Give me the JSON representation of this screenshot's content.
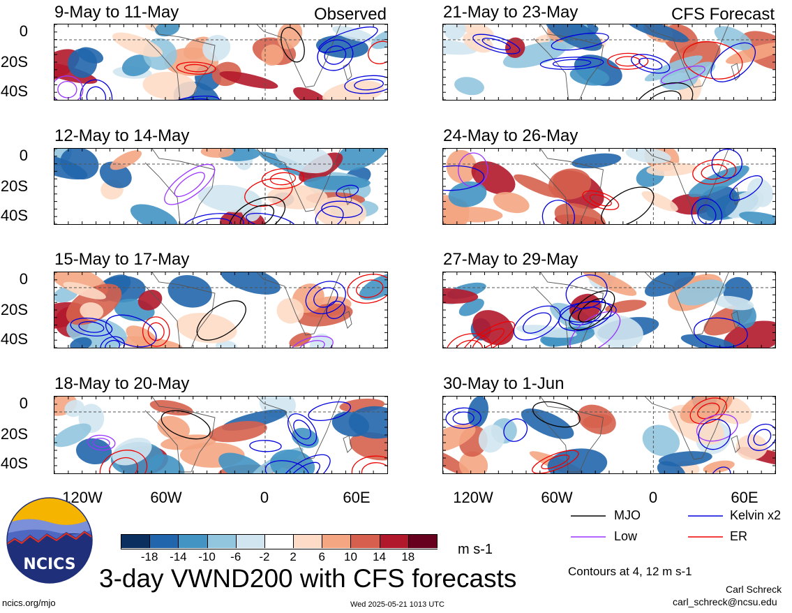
{
  "panels": [
    {
      "title": "9-May to 11-May",
      "tag": "Observed"
    },
    {
      "title": "21-May to 23-May",
      "tag": "CFS Forecast"
    },
    {
      "title": "12-May to 14-May",
      "tag": ""
    },
    {
      "title": "24-May to 26-May",
      "tag": ""
    },
    {
      "title": "15-May to 17-May",
      "tag": ""
    },
    {
      "title": "27-May to 29-May",
      "tag": ""
    },
    {
      "title": "18-May to 20-May",
      "tag": ""
    },
    {
      "title": "30-May to 1-Jun",
      "tag": ""
    }
  ],
  "lat_labels": [
    "0",
    "20S",
    "40S"
  ],
  "lon_labels": [
    "120W",
    "60W",
    "0",
    "60E"
  ],
  "legend": {
    "mjo": {
      "label": "MJO",
      "color": "#000000"
    },
    "kelvin": {
      "label": "Kelvin x2",
      "color": "#0000dd"
    },
    "low": {
      "label": "Low",
      "color": "#9933ff"
    },
    "er": {
      "label": "ER",
      "color": "#ee0000"
    }
  },
  "colorbar": {
    "colors": [
      "#0b2f5f",
      "#2166ac",
      "#4393c3",
      "#92c5de",
      "#d1e5f0",
      "#ffffff",
      "#fddbc7",
      "#f4a582",
      "#d6604d",
      "#b2182b",
      "#67001f"
    ],
    "ticks": [
      "-18",
      "-14",
      "-10",
      "-6",
      "-2",
      "2",
      "6",
      "10",
      "14",
      "18"
    ],
    "units": "m s-1"
  },
  "contours_note": "Contours at 4, 12 m s-1",
  "main_title": "3-day VWND200 with CFS forecasts",
  "logo_text": "NCICS",
  "author": "Carl Schreck",
  "email": "carl_schreck@ncsu.edu",
  "site": "ncics.org/mjo",
  "timestamp": "Wed 2025-05-21 1013 UTC"
}
